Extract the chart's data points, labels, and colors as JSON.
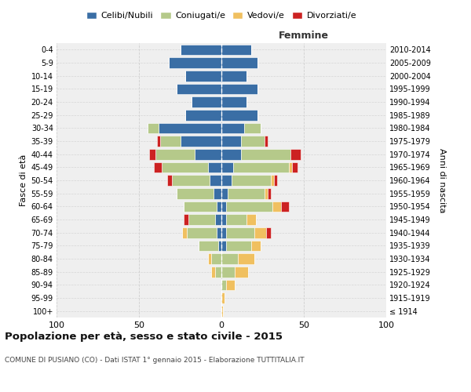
{
  "age_groups": [
    "100+",
    "95-99",
    "90-94",
    "85-89",
    "80-84",
    "75-79",
    "70-74",
    "65-69",
    "60-64",
    "55-59",
    "50-54",
    "45-49",
    "40-44",
    "35-39",
    "30-34",
    "25-29",
    "20-24",
    "15-19",
    "10-14",
    "5-9",
    "0-4"
  ],
  "birth_years": [
    "≤ 1914",
    "1915-1919",
    "1920-1924",
    "1925-1929",
    "1930-1934",
    "1935-1939",
    "1940-1944",
    "1945-1949",
    "1950-1954",
    "1955-1959",
    "1960-1964",
    "1965-1969",
    "1970-1974",
    "1975-1979",
    "1980-1984",
    "1985-1989",
    "1990-1994",
    "1995-1999",
    "2000-2004",
    "2005-2009",
    "2010-2014"
  ],
  "maschi": {
    "celibi": [
      0,
      0,
      0,
      0,
      0,
      2,
      3,
      4,
      3,
      5,
      7,
      8,
      16,
      25,
      38,
      22,
      18,
      27,
      22,
      32,
      25
    ],
    "coniugati": [
      0,
      0,
      0,
      4,
      6,
      12,
      18,
      16,
      20,
      22,
      23,
      28,
      24,
      12,
      7,
      0,
      0,
      0,
      0,
      0,
      0
    ],
    "vedovi": [
      0,
      0,
      0,
      2,
      2,
      0,
      3,
      0,
      0,
      0,
      0,
      0,
      0,
      0,
      0,
      0,
      0,
      0,
      0,
      0,
      0
    ],
    "divorziati": [
      0,
      0,
      0,
      0,
      0,
      0,
      0,
      3,
      0,
      0,
      3,
      5,
      4,
      2,
      0,
      0,
      0,
      0,
      0,
      0,
      0
    ]
  },
  "femmine": {
    "nubili": [
      0,
      0,
      0,
      0,
      0,
      3,
      3,
      3,
      3,
      4,
      6,
      7,
      12,
      12,
      14,
      22,
      15,
      22,
      15,
      22,
      18
    ],
    "coniugate": [
      0,
      0,
      3,
      8,
      10,
      15,
      17,
      12,
      28,
      22,
      24,
      34,
      30,
      14,
      10,
      0,
      0,
      0,
      0,
      0,
      0
    ],
    "vedove": [
      1,
      2,
      5,
      8,
      10,
      6,
      7,
      6,
      5,
      2,
      2,
      2,
      0,
      0,
      0,
      0,
      0,
      0,
      0,
      0,
      0
    ],
    "divorziate": [
      0,
      0,
      0,
      0,
      0,
      0,
      3,
      0,
      5,
      2,
      2,
      3,
      6,
      2,
      0,
      0,
      0,
      0,
      0,
      0,
      0
    ]
  },
  "colors": {
    "celibi": "#3a6ea5",
    "coniugati": "#b5c98a",
    "vedovi": "#f0c060",
    "divorziati": "#cc2222"
  },
  "legend_labels": [
    "Celibi/Nubili",
    "Coniugati/e",
    "Vedovi/e",
    "Divorziati/e"
  ],
  "title": "Popolazione per età, sesso e stato civile - 2015",
  "subtitle": "COMUNE DI PUSIANO (CO) - Dati ISTAT 1° gennaio 2015 - Elaborazione TUTTITALIA.IT",
  "ylabel_left": "Fasce di età",
  "ylabel_right": "Anni di nascita",
  "xlim": 100,
  "background_color": "#ffffff",
  "plot_bg": "#efefef",
  "grid_color": "#cccccc"
}
